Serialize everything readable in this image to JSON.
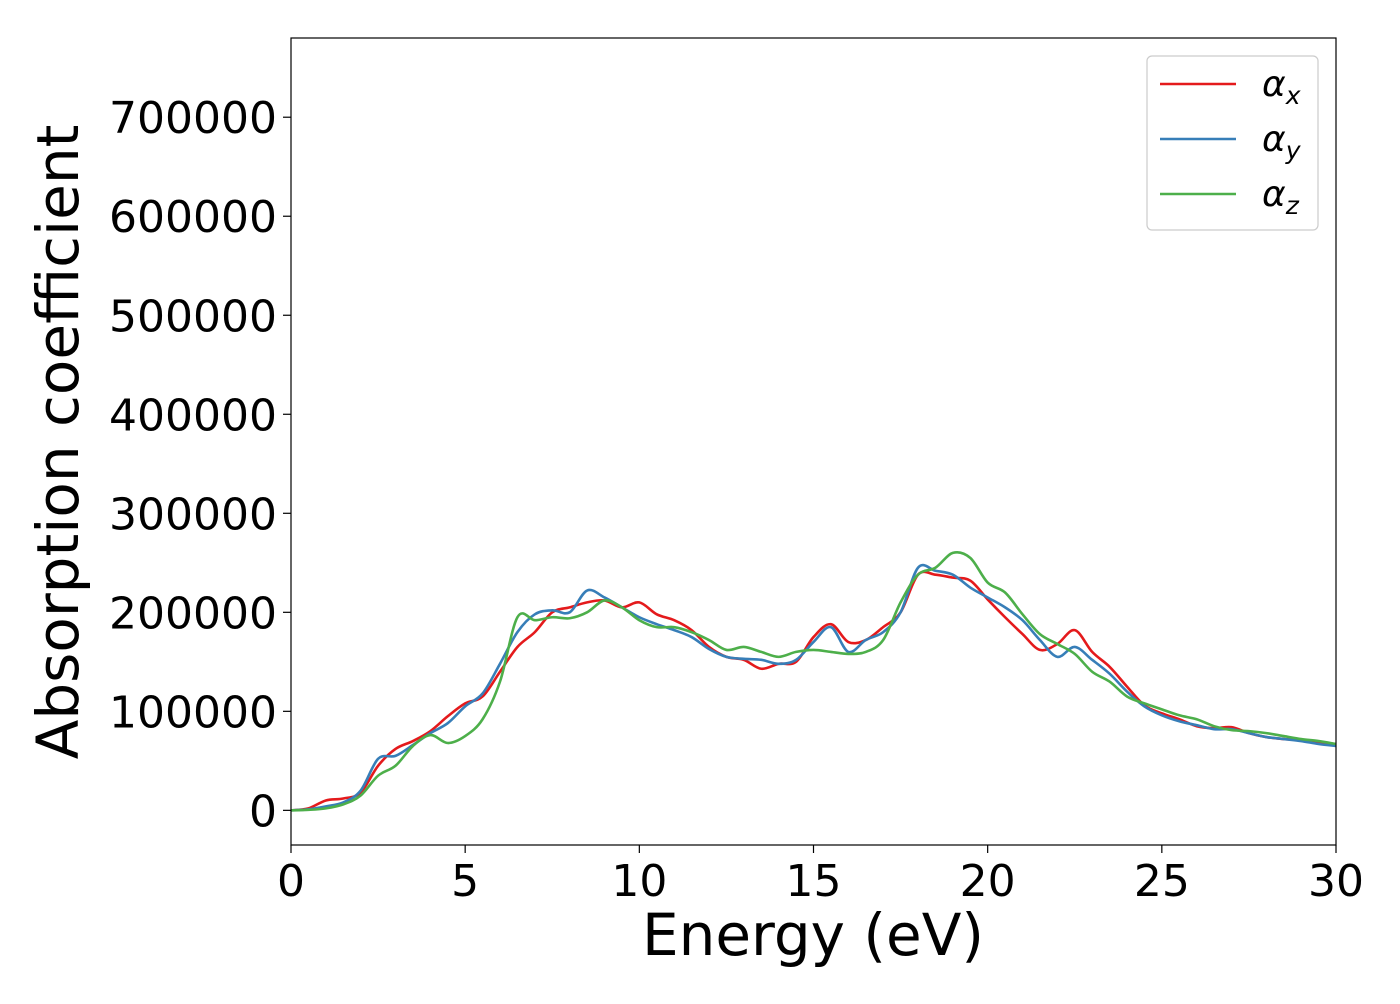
{
  "chart_data": {
    "type": "line",
    "xlabel": "Energy (eV)",
    "ylabel": "Absorption coefficient",
    "xlim": [
      0,
      30
    ],
    "ylim": [
      -35000,
      780000
    ],
    "xticks": [
      0,
      5,
      10,
      15,
      20,
      25,
      30
    ],
    "xtick_labels": [
      "0",
      "5",
      "10",
      "15",
      "20",
      "25",
      "30"
    ],
    "yticks": [
      0,
      100000,
      200000,
      300000,
      400000,
      500000,
      600000,
      700000
    ],
    "ytick_labels": [
      "0",
      "100000",
      "200000",
      "300000",
      "400000",
      "500000",
      "600000",
      "700000"
    ],
    "grid": false,
    "legend_position": "top-right",
    "series": [
      {
        "name": "α",
        "subscript": "x",
        "color": "#e41a1c",
        "x": [
          0,
          0.5,
          1,
          1.5,
          2,
          2.5,
          3,
          3.5,
          4,
          4.5,
          5,
          5.5,
          6,
          6.5,
          7,
          7.5,
          8,
          8.5,
          9,
          9.5,
          10,
          10.5,
          11,
          11.5,
          12,
          12.5,
          13,
          13.5,
          14,
          14.5,
          15,
          15.5,
          16,
          16.5,
          17,
          17.5,
          18,
          18.5,
          19,
          19.5,
          20,
          20.5,
          21,
          21.5,
          22,
          22.5,
          23,
          23.5,
          24,
          24.5,
          25,
          25.5,
          26,
          26.5,
          27,
          27.5,
          28,
          28.5,
          29,
          29.5,
          30
        ],
        "values": [
          0,
          2000,
          10000,
          12000,
          18000,
          45000,
          62000,
          70000,
          80000,
          95000,
          108000,
          115000,
          140000,
          165000,
          180000,
          200000,
          205000,
          210000,
          212000,
          205000,
          210000,
          198000,
          192000,
          182000,
          165000,
          155000,
          152000,
          143000,
          148000,
          150000,
          175000,
          188000,
          170000,
          172000,
          185000,
          200000,
          238000,
          238000,
          235000,
          232000,
          213000,
          195000,
          178000,
          162000,
          168000,
          182000,
          160000,
          145000,
          125000,
          106000,
          98000,
          92000,
          85000,
          83000,
          84000,
          78000,
          74000,
          72000,
          71000,
          69000,
          67000
        ]
      },
      {
        "name": "α",
        "subscript": "y",
        "color": "#377eb8",
        "x": [
          0,
          0.5,
          1,
          1.5,
          2,
          2.5,
          3,
          3.5,
          4,
          4.5,
          5,
          5.5,
          6,
          6.5,
          7,
          7.5,
          8,
          8.5,
          9,
          9.5,
          10,
          10.5,
          11,
          11.5,
          12,
          12.5,
          13,
          13.5,
          14,
          14.5,
          15,
          15.5,
          16,
          16.5,
          17,
          17.5,
          18,
          18.5,
          19,
          19.5,
          20,
          20.5,
          21,
          21.5,
          22,
          22.5,
          23,
          23.5,
          24,
          24.5,
          25,
          25.5,
          26,
          26.5,
          27,
          27.5,
          28,
          28.5,
          29,
          29.5,
          30
        ],
        "values": [
          0,
          1000,
          4000,
          8000,
          20000,
          52000,
          55000,
          66000,
          78000,
          88000,
          105000,
          118000,
          148000,
          180000,
          198000,
          202000,
          200000,
          222000,
          215000,
          205000,
          195000,
          188000,
          182000,
          175000,
          163000,
          155000,
          153000,
          152000,
          148000,
          152000,
          170000,
          185000,
          160000,
          172000,
          180000,
          200000,
          245000,
          242000,
          238000,
          225000,
          215000,
          205000,
          192000,
          172000,
          155000,
          165000,
          152000,
          138000,
          120000,
          105000,
          96000,
          90000,
          86000,
          82000,
          82000,
          78000,
          74000,
          72000,
          70000,
          67000,
          65000
        ]
      },
      {
        "name": "α",
        "subscript": "z",
        "color": "#4daf4a",
        "x": [
          0,
          0.5,
          1,
          1.5,
          2,
          2.5,
          3,
          3.5,
          4,
          4.5,
          5,
          5.5,
          6,
          6.5,
          7,
          7.5,
          8,
          8.5,
          9,
          9.5,
          10,
          10.5,
          11,
          11.5,
          12,
          12.5,
          13,
          13.5,
          14,
          14.5,
          15,
          15.5,
          16,
          16.5,
          17,
          17.5,
          18,
          18.5,
          19,
          19.5,
          20,
          20.5,
          21,
          21.5,
          22,
          22.5,
          23,
          23.5,
          24,
          24.5,
          25,
          25.5,
          26,
          26.5,
          27,
          27.5,
          28,
          28.5,
          29,
          29.5,
          30
        ],
        "values": [
          0,
          500,
          2000,
          6000,
          15000,
          35000,
          45000,
          65000,
          76000,
          68000,
          75000,
          92000,
          130000,
          195000,
          192000,
          195000,
          194000,
          200000,
          212000,
          205000,
          192000,
          185000,
          185000,
          180000,
          172000,
          162000,
          165000,
          160000,
          155000,
          160000,
          162000,
          160000,
          158000,
          160000,
          172000,
          210000,
          238000,
          245000,
          260000,
          255000,
          230000,
          220000,
          198000,
          178000,
          168000,
          158000,
          140000,
          130000,
          115000,
          108000,
          102000,
          96000,
          92000,
          85000,
          81000,
          80000,
          78000,
          75000,
          72000,
          70000,
          67000
        ]
      }
    ]
  }
}
